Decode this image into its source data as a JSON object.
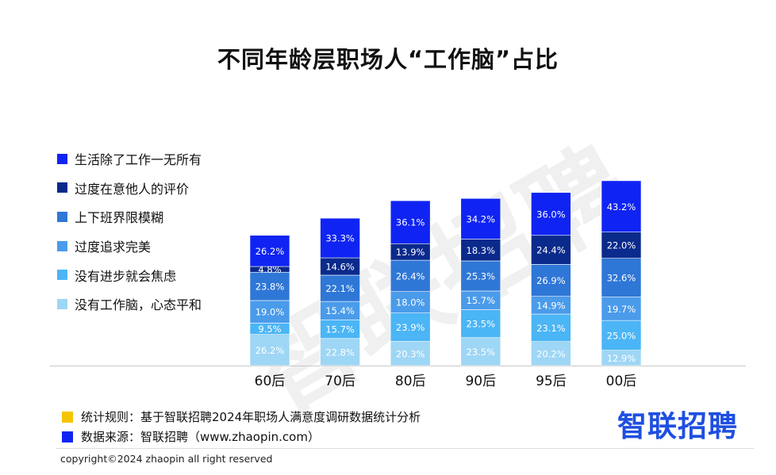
{
  "title": "不同年龄层职场人“工作脑”占比",
  "watermark": "智联招聘",
  "colors": {
    "c1": "#0f24f2",
    "c2": "#0a2a8c",
    "c3": "#2f77d6",
    "c4": "#4a9bea",
    "c5": "#4bb5f5",
    "c6": "#9ed6f5",
    "rule_marker": "#f5c400",
    "source_marker": "#0f24f2",
    "brand": "#1f4fe0"
  },
  "chart_data": {
    "type": "bar",
    "stacked": true,
    "categories": [
      "60后",
      "70后",
      "80后",
      "90后",
      "95后",
      "00后"
    ],
    "series": [
      {
        "name": "没有工作脑，心态平和",
        "values": [
          26.2,
          22.8,
          20.3,
          23.5,
          20.2,
          12.9
        ]
      },
      {
        "name": "没有进步就会焦虑",
        "values": [
          9.5,
          15.7,
          23.9,
          23.5,
          23.1,
          25.0
        ]
      },
      {
        "name": "过度追求完美",
        "values": [
          19.0,
          15.4,
          18.0,
          15.7,
          14.9,
          19.7
        ]
      },
      {
        "name": "上下班界限模糊",
        "values": [
          23.8,
          22.1,
          26.4,
          25.3,
          26.9,
          32.6
        ]
      },
      {
        "name": "过度在意他人的评价",
        "values": [
          4.8,
          14.6,
          13.9,
          18.3,
          24.4,
          22.0
        ]
      },
      {
        "name": "生活除了工作一无所有",
        "values": [
          26.2,
          33.3,
          36.1,
          34.2,
          36.0,
          43.2
        ]
      }
    ],
    "legend_position": "left"
  },
  "legend": [
    {
      "label": "生活除了工作一无所有",
      "color": "#0f24f2"
    },
    {
      "label": "过度在意他人的评价",
      "color": "#0a2a8c"
    },
    {
      "label": "上下班界限模糊",
      "color": "#2f77d6"
    },
    {
      "label": "过度追求完美",
      "color": "#4a9bea"
    },
    {
      "label": "没有进步就会焦虑",
      "color": "#4bb5f5"
    },
    {
      "label": "没有工作脑，心态平和",
      "color": "#9ed6f5"
    }
  ],
  "notes": {
    "rule": "统计规则：基于智联招聘2024年职场人满意度调研数据统计分析",
    "source": "数据来源：智联招聘（www.zhaopin.com）"
  },
  "brand": "智联招聘",
  "copyright": "copyright©2024 zhaopin all right reserved"
}
